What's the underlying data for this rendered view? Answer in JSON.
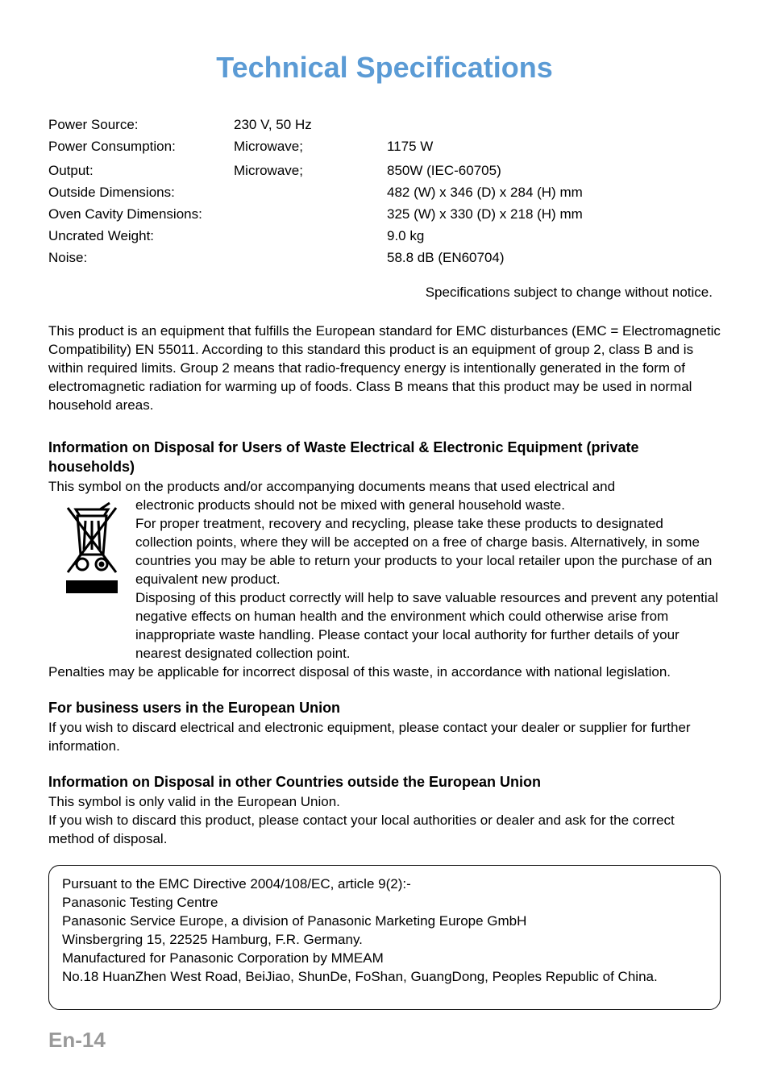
{
  "title": {
    "text": "Technical Specifications",
    "color": "#5b9bd5",
    "fontsize": 36
  },
  "specs": {
    "rows": [
      {
        "label": "Power Source:",
        "mid": "230 V, 50 Hz",
        "val": ""
      },
      {
        "label": "Power Consumption:",
        "mid": "Microwave;",
        "val": "1175 W"
      },
      {
        "label": "",
        "mid": "",
        "val": ""
      },
      {
        "label": "Output:",
        "mid": "Microwave;",
        "val": "850W (IEC-60705)"
      },
      {
        "label": "Outside Dimensions:",
        "mid": "",
        "val": "482 (W) x 346 (D) x 284 (H) mm"
      },
      {
        "label": "Oven Cavity Dimensions:",
        "mid": "",
        "val": "325 (W) x 330 (D) x 218 (H) mm"
      },
      {
        "label": "Uncrated Weight:",
        "mid": "",
        "val": "9.0 kg"
      },
      {
        "label": "Noise:",
        "mid": "",
        "val": "58.8 dB (EN60704)"
      }
    ],
    "note": "Specifications subject to change without notice."
  },
  "emc_para": "This product is an equipment that fulfills the European standard for EMC disturbances (EMC = Electromagnetic Compatibility) EN 55011. According to this standard this product is an equipment of group 2, class B and is within required limits. Group 2 means that radio-frequency energy is intentionally generated in the form of electromagnetic radiation for warming up of foods. Class B means that this product may be used in normal household areas.",
  "disposal": {
    "heading": "Information on Disposal for Users of Waste Electrical & Electronic Equipment (private households)",
    "line1": "This symbol on the products and/or accompanying documents means that used electrical and",
    "icon_text": "electronic products should not be mixed with general household waste.\nFor proper treatment, recovery and recycling, please take these products to designated collection points, where they will be accepted on a free of charge basis. Alternatively, in some countries you may be able to return your products to your local retailer upon the purchase of an equivalent new product.\nDisposing of this product correctly will help to save valuable resources and prevent any potential negative effects on human health and the environment which could otherwise arise from inappropriate waste handling. Please contact your local authority for further details of your nearest designated collection point.",
    "after": "Penalties may be applicable for incorrect disposal of this waste, in accordance with national legislation."
  },
  "business": {
    "heading": "For business users in the European Union",
    "text": "If you wish to discard electrical and electronic equipment, please contact your dealer or supplier for further information."
  },
  "other": {
    "heading": "Information on Disposal in other Countries outside the European Union",
    "text": "This symbol is only valid in the European Union.\nIf you wish to discard this product, please contact your local authorities or dealer and ask for the correct method of disposal."
  },
  "framed": "Pursuant to the EMC Directive 2004/108/EC, article 9(2):-\nPanasonic Testing Centre\nPanasonic Service Europe, a division of Panasonic Marketing Europe GmbH\nWinsbergring 15, 22525 Hamburg, F.R. Germany.\nManufactured for Panasonic Corporation by MMEAM\nNo.18 HuanZhen West Road, BeiJiao, ShunDe, FoShan, GuangDong, Peoples Republic of China.",
  "footer": "En-14",
  "colors": {
    "title": "#5b9bd5",
    "footer": "#a9a9a9",
    "text": "#000000",
    "bg": "#ffffff",
    "border": "#000000"
  }
}
